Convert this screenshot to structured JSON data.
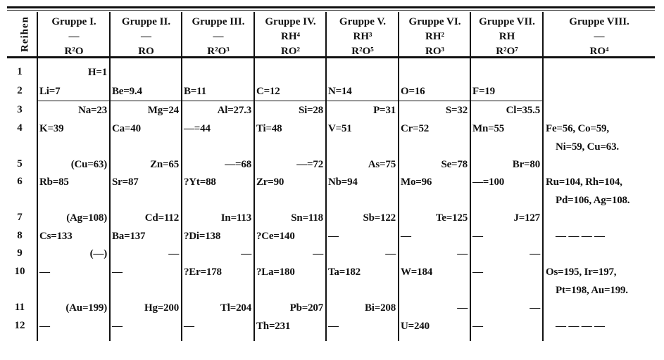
{
  "table": {
    "row_header": "Reihen",
    "groups": [
      {
        "name": "Gruppe I.",
        "hydride": "—",
        "oxide": "R²O"
      },
      {
        "name": "Gruppe II.",
        "hydride": "—",
        "oxide": "RO"
      },
      {
        "name": "Gruppe III.",
        "hydride": "—",
        "oxide": "R²O³"
      },
      {
        "name": "Gruppe IV.",
        "hydride": "RH⁴",
        "oxide": "RO²"
      },
      {
        "name": "Gruppe V.",
        "hydride": "RH³",
        "oxide": "R²O⁵"
      },
      {
        "name": "Gruppe VI.",
        "hydride": "RH²",
        "oxide": "RO³"
      },
      {
        "name": "Gruppe VII.",
        "hydride": "RH",
        "oxide": "R²O⁷"
      },
      {
        "name": "Gruppe VIII.",
        "hydride": "—",
        "oxide": "RO⁴"
      }
    ],
    "rows": [
      {
        "label": "1",
        "cells": [
          "H=1",
          "",
          "",
          "",
          "",
          "",
          ""
        ],
        "group8": []
      },
      {
        "label": "2",
        "cells": [
          "Li=7",
          "Be=9.4",
          "B=11",
          "C=12",
          "N=14",
          "O=16",
          "F=19"
        ],
        "group8": []
      },
      {
        "label": "3",
        "cells": [
          "Na=23",
          "Mg=24",
          "Al=27.3",
          "Si=28",
          "P=31",
          "S=32",
          "Cl=35.5"
        ],
        "group8": []
      },
      {
        "label": "4",
        "cells": [
          "K=39",
          "Ca=40",
          "—=44",
          "Ti=48",
          "V=51",
          "Cr=52",
          "Mn=55"
        ],
        "group8": [
          "Fe=56, Co=59,",
          "Ni=59, Cu=63."
        ]
      },
      {
        "label": "5",
        "cells": [
          "(Cu=63)",
          "Zn=65",
          "—=68",
          "—=72",
          "As=75",
          "Se=78",
          "Br=80"
        ],
        "group8": []
      },
      {
        "label": "6",
        "cells": [
          "Rb=85",
          "Sr=87",
          "?Yt=88",
          "Zr=90",
          "Nb=94",
          "Mo=96",
          "—=100"
        ],
        "group8": [
          "Ru=104, Rh=104,",
          "Pd=106, Ag=108."
        ]
      },
      {
        "label": "7",
        "cells": [
          "(Ag=108)",
          "Cd=112",
          "In=113",
          "Sn=118",
          "Sb=122",
          "Te=125",
          "J=127"
        ],
        "group8": []
      },
      {
        "label": "8",
        "cells": [
          "Cs=133",
          "Ba=137",
          "?Di=138",
          "?Ce=140",
          "—",
          "—",
          "—"
        ],
        "group8": [
          "— — — —"
        ]
      },
      {
        "label": "9",
        "cells": [
          "(—)",
          "—",
          "—",
          "—",
          "—",
          "—",
          "—"
        ],
        "group8": []
      },
      {
        "label": "10",
        "cells": [
          "—",
          "—",
          "?Er=178",
          "?La=180",
          "Ta=182",
          "W=184",
          "—"
        ],
        "group8": [
          "Os=195, Ir=197,",
          "Pt=198, Au=199."
        ]
      },
      {
        "label": "11",
        "cells": [
          "(Au=199)",
          "Hg=200",
          "Tl=204",
          "Pb=207",
          "Bi=208",
          "—",
          "—"
        ],
        "group8": []
      },
      {
        "label": "12",
        "cells": [
          "—",
          "—",
          "—",
          "Th=231",
          "—",
          "U=240",
          "—"
        ],
        "group8": [
          "— — — —"
        ]
      }
    ]
  }
}
